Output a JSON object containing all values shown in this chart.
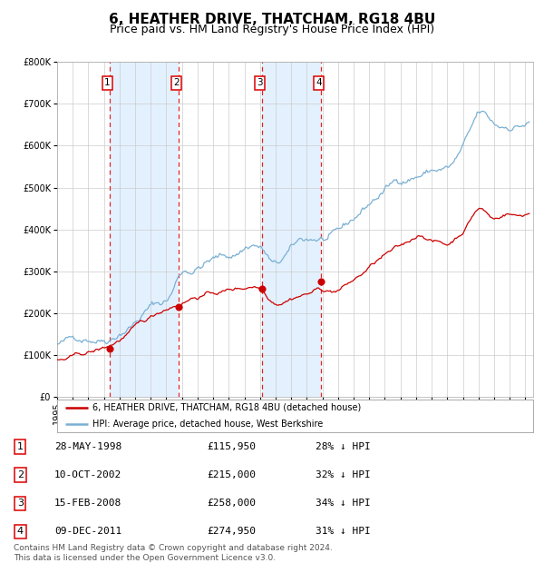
{
  "title": "6, HEATHER DRIVE, THATCHAM, RG18 4BU",
  "subtitle": "Price paid vs. HM Land Registry's House Price Index (HPI)",
  "legend_property": "6, HEATHER DRIVE, THATCHAM, RG18 4BU (detached house)",
  "legend_hpi": "HPI: Average price, detached house, West Berkshire",
  "footer_line1": "Contains HM Land Registry data © Crown copyright and database right 2024.",
  "footer_line2": "This data is licensed under the Open Government Licence v3.0.",
  "sales": [
    {
      "num": 1,
      "date_str": "28-MAY-1998",
      "date_x": 1998.38,
      "price": 115950
    },
    {
      "num": 2,
      "date_str": "10-OCT-2002",
      "date_x": 2002.77,
      "price": 215000
    },
    {
      "num": 3,
      "date_str": "15-FEB-2008",
      "date_x": 2008.12,
      "price": 258000
    },
    {
      "num": 4,
      "date_str": "09-DEC-2011",
      "date_x": 2011.93,
      "price": 274950
    }
  ],
  "table_rows": [
    [
      1,
      "28-MAY-1998",
      "£115,950",
      "28% ↓ HPI"
    ],
    [
      2,
      "10-OCT-2002",
      "£215,000",
      "32% ↓ HPI"
    ],
    [
      3,
      "15-FEB-2008",
      "£258,000",
      "34% ↓ HPI"
    ],
    [
      4,
      "09-DEC-2011",
      "£274,950",
      "31% ↓ HPI"
    ]
  ],
  "sale_color": "#cc0000",
  "hpi_color": "#7ab0d4",
  "vline_color": "#dd0000",
  "shade_color": "#ddeeff",
  "ylim": [
    0,
    800000
  ],
  "xlim_start": 1995.0,
  "xlim_end": 2025.5,
  "background_color": "#ffffff",
  "grid_color": "#cccccc",
  "title_fontsize": 11,
  "subtitle_fontsize": 9,
  "footer_fontsize": 6.5,
  "axis_fontsize": 7,
  "legend_fontsize": 7,
  "table_fontsize": 8
}
